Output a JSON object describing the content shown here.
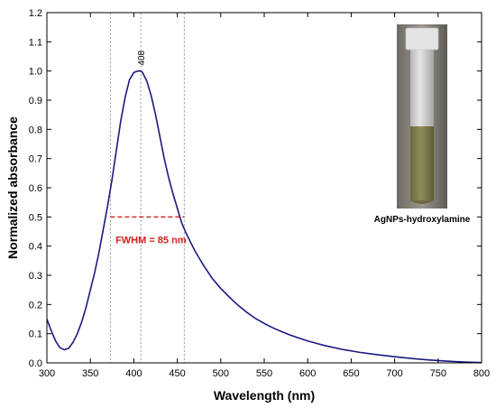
{
  "chart_data": {
    "type": "line",
    "xlabel": "Wavelength (nm)",
    "ylabel": "Normalized absorbance",
    "xlim": [
      300,
      800
    ],
    "ylim": [
      0.0,
      1.2
    ],
    "xticks": [
      "300",
      "350",
      "400",
      "450",
      "500",
      "550",
      "600",
      "650",
      "700",
      "750",
      "800"
    ],
    "yticks": [
      "0.0",
      "0.1",
      "0.2",
      "0.3",
      "0.4",
      "0.5",
      "0.6",
      "0.7",
      "0.8",
      "0.9",
      "1.0",
      "1.1",
      "1.2"
    ],
    "grid": false,
    "series": [
      {
        "color": "#1a1a80",
        "x": [
          300,
          305,
          310,
          315,
          320,
          325,
          330,
          335,
          340,
          345,
          350,
          355,
          360,
          365,
          370,
          375,
          380,
          385,
          390,
          395,
          400,
          405,
          408,
          410,
          415,
          420,
          425,
          430,
          435,
          440,
          445,
          450,
          455,
          460,
          465,
          470,
          475,
          480,
          490,
          500,
          510,
          520,
          530,
          540,
          550,
          560,
          570,
          580,
          590,
          600,
          620,
          640,
          660,
          680,
          700,
          720,
          740,
          760,
          780,
          800
        ],
        "y": [
          0.15,
          0.11,
          0.075,
          0.052,
          0.045,
          0.05,
          0.07,
          0.1,
          0.14,
          0.19,
          0.25,
          0.31,
          0.38,
          0.46,
          0.54,
          0.63,
          0.73,
          0.83,
          0.91,
          0.97,
          0.995,
          1.0,
          1.0,
          0.995,
          0.965,
          0.915,
          0.85,
          0.775,
          0.7,
          0.635,
          0.58,
          0.53,
          0.48,
          0.445,
          0.415,
          0.385,
          0.36,
          0.335,
          0.29,
          0.255,
          0.225,
          0.197,
          0.173,
          0.152,
          0.135,
          0.12,
          0.107,
          0.095,
          0.085,
          0.075,
          0.059,
          0.046,
          0.036,
          0.028,
          0.021,
          0.015,
          0.01,
          0.006,
          0.003,
          0.001
        ]
      }
    ],
    "annotations": {
      "peak_label": "408",
      "peak_x": 408,
      "fwhm_label": "FWHM = 85 nm",
      "fwhm_color": "#d42020",
      "fwhm_y": 0.5,
      "fwhm_x": [
        373,
        458
      ],
      "vertical_guides_x": [
        373,
        408,
        458
      ]
    },
    "inset": {
      "caption": "AgNPs-hydroxylamine"
    }
  }
}
